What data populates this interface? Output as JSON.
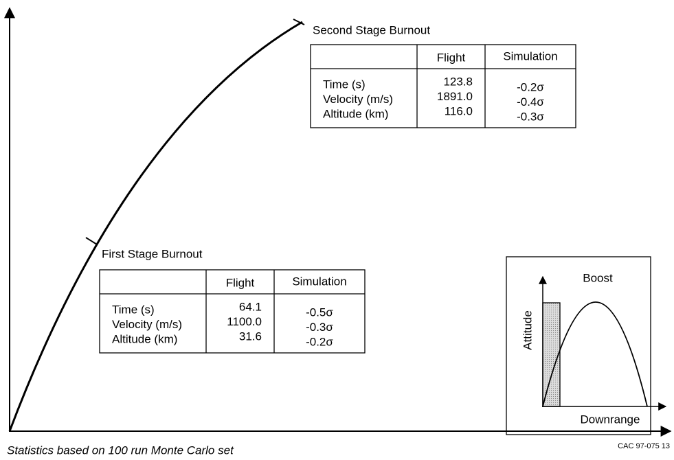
{
  "second_stage": {
    "title": "Second Stage Burnout",
    "columns": [
      "Flight",
      "Simulation"
    ],
    "rows": [
      [
        "Time (s)",
        "123.8",
        "-0.2σ"
      ],
      [
        "Velocity (m/s)",
        "1891.0",
        "-0.4σ"
      ],
      [
        "Altitude (km)",
        "116.0",
        "-0.3σ"
      ]
    ]
  },
  "first_stage": {
    "title": "First Stage Burnout",
    "columns": [
      "Flight",
      "Simulation"
    ],
    "rows": [
      [
        "Time (s)",
        "64.1",
        "-0.5σ"
      ],
      [
        "Velocity (m/s)",
        "1100.0",
        "-0.3σ"
      ],
      [
        "Altitude (km)",
        "31.6",
        "-0.2σ"
      ]
    ]
  },
  "inset": {
    "title": "Boost",
    "y_label": "Attitude",
    "x_label": "Downrange"
  },
  "footer": {
    "note": "Statistics based on 100 run Monte Carlo set",
    "code": "CAC 97-075 13"
  }
}
